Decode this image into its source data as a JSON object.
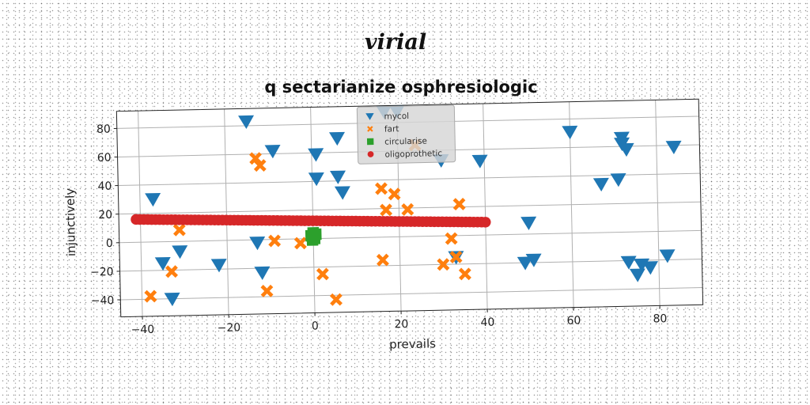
{
  "chart_data": {
    "type": "scatter",
    "suptitle": "virial",
    "title": "q sectarianize osphresiologic",
    "xlabel": "prevails",
    "ylabel": "injunctively",
    "xlim": [
      -45,
      90
    ],
    "ylim": [
      -52,
      92
    ],
    "xticks": [
      -40,
      -20,
      0,
      20,
      40,
      60,
      80
    ],
    "yticks": [
      -40,
      -20,
      0,
      20,
      40,
      60,
      80
    ],
    "xtick_labels": [
      "−40",
      "−20",
      "0",
      "20",
      "40",
      "60",
      "80"
    ],
    "ytick_labels": [
      "−40",
      "−20",
      "0",
      "20",
      "40",
      "60",
      "80"
    ],
    "grid": true,
    "legend": "top-center",
    "series": [
      {
        "name": "mycol",
        "marker": "triangle-down",
        "color": "#1f77b4",
        "x": [
          -15,
          -37,
          -35,
          -31,
          -33,
          -22,
          -13,
          -12,
          -9,
          1,
          1,
          6,
          6,
          7,
          17,
          20,
          30,
          33,
          39,
          50,
          49,
          51,
          60,
          67,
          72,
          72,
          73,
          71,
          73,
          75,
          76,
          78,
          82,
          84
        ],
        "y": [
          83,
          30,
          -15,
          -7,
          -40,
          -17,
          -2,
          -23,
          62,
          59,
          42,
          70,
          43,
          32,
          88,
          88,
          53,
          -15,
          52,
          8,
          -20,
          -18,
          71,
          34,
          66,
          62,
          58,
          37,
          -21,
          -30,
          -23,
          -25,
          -17,
          59
        ]
      },
      {
        "name": "fart",
        "marker": "x",
        "color": "#ff7f0e",
        "x": [
          -38,
          -33,
          -31,
          -13,
          -12,
          -9,
          -11,
          -3,
          2,
          5,
          16,
          16,
          17,
          19,
          22,
          24,
          30,
          32,
          33,
          34,
          35
        ],
        "y": [
          -38,
          -21,
          8,
          57,
          52,
          -1,
          -36,
          -3,
          -25,
          -43,
          -16,
          34,
          19,
          30,
          19,
          64,
          -20,
          -2,
          -15,
          22,
          -27
        ]
      },
      {
        "name": "circularise",
        "marker": "square",
        "color": "#2ca02c",
        "x": [
          -0.5,
          0,
          0.3,
          -0.2,
          0.6
        ],
        "y": [
          2,
          4,
          0,
          -1,
          3
        ]
      },
      {
        "name": "oligoprothetic",
        "marker": "circle",
        "color": "#d62728",
        "line": {
          "x_start": -41,
          "y_start": 16,
          "x_end": 40,
          "y_end": 9,
          "count": 90
        }
      }
    ]
  }
}
